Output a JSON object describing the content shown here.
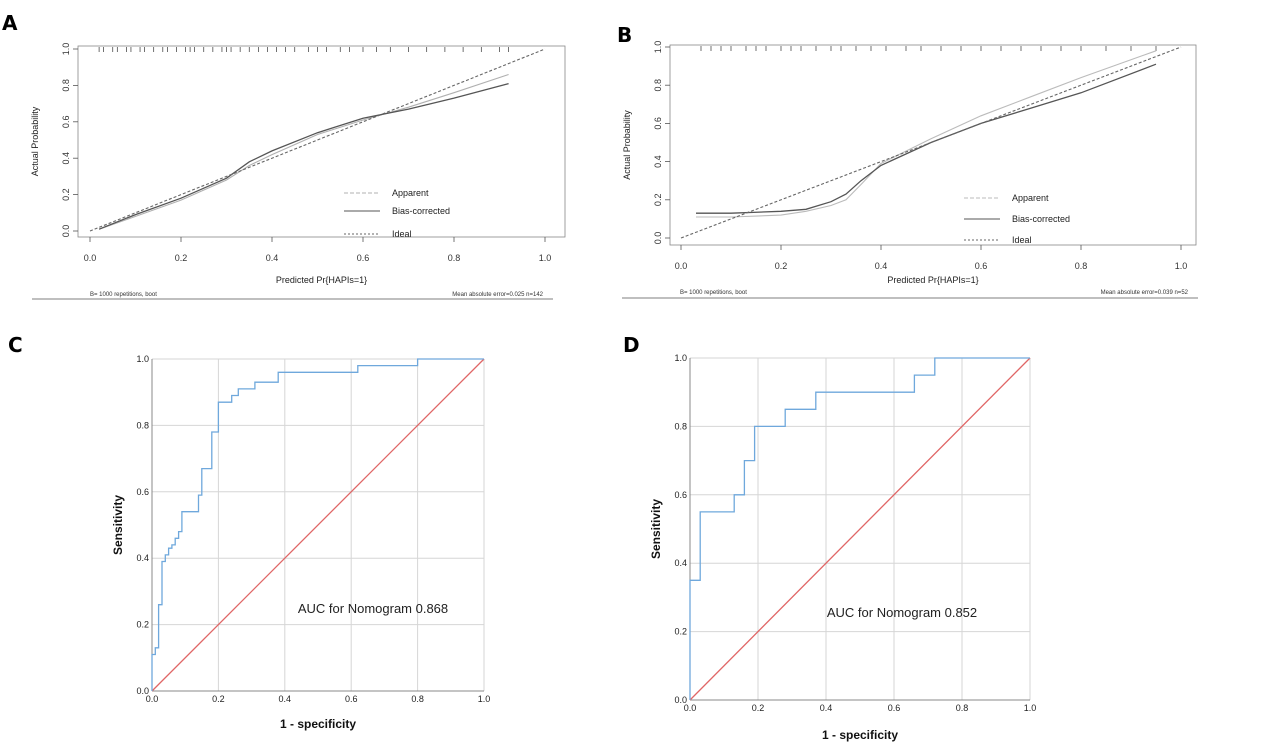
{
  "chart_data": [
    {
      "panel": "A",
      "type": "line",
      "xlabel": "Predicted Pr{HAPIs=1}",
      "ylabel": "Actual Probability",
      "xlim": [
        0,
        1
      ],
      "ylim": [
        0,
        1
      ],
      "xticks": [
        "0.0",
        "0.2",
        "0.4",
        "0.6",
        "0.8",
        "1.0"
      ],
      "yticks": [
        "0.0",
        "0.2",
        "0.4",
        "0.6",
        "0.8",
        "1.0"
      ],
      "legend": {
        "position": "bottom-right",
        "entries": [
          "Apparent",
          "Bias-corrected",
          "Ideal"
        ]
      },
      "footer_left": "B= 1000 repetitions, boot",
      "footer_right": "Mean absolute error=0.025 n=142",
      "series": [
        {
          "name": "Apparent",
          "color": "#b0b0b0",
          "x": [
            0.02,
            0.1,
            0.2,
            0.3,
            0.35,
            0.4,
            0.5,
            0.6,
            0.7,
            0.8,
            0.92
          ],
          "y": [
            0.01,
            0.08,
            0.17,
            0.28,
            0.36,
            0.42,
            0.53,
            0.61,
            0.68,
            0.76,
            0.86
          ]
        },
        {
          "name": "Bias-corrected",
          "color": "#555555",
          "x": [
            0.02,
            0.1,
            0.2,
            0.3,
            0.35,
            0.4,
            0.5,
            0.6,
            0.7,
            0.8,
            0.92
          ],
          "y": [
            0.01,
            0.09,
            0.18,
            0.29,
            0.38,
            0.44,
            0.54,
            0.62,
            0.67,
            0.73,
            0.81
          ]
        },
        {
          "name": "Ideal",
          "color": "#666666",
          "dashed": true,
          "x": [
            0,
            1
          ],
          "y": [
            0,
            1
          ]
        }
      ],
      "rug_x": [
        0.02,
        0.03,
        0.05,
        0.06,
        0.08,
        0.09,
        0.11,
        0.12,
        0.14,
        0.16,
        0.17,
        0.19,
        0.21,
        0.22,
        0.23,
        0.25,
        0.27,
        0.29,
        0.3,
        0.31,
        0.33,
        0.35,
        0.37,
        0.39,
        0.41,
        0.43,
        0.45,
        0.48,
        0.5,
        0.52,
        0.55,
        0.57,
        0.6,
        0.63,
        0.66,
        0.7,
        0.74,
        0.78,
        0.82,
        0.86,
        0.9,
        0.92
      ]
    },
    {
      "panel": "B",
      "type": "line",
      "xlabel": "Predicted Pr{HAPIs=1}",
      "ylabel": "Actual Probability",
      "xlim": [
        0,
        1
      ],
      "ylim": [
        0,
        1
      ],
      "xticks": [
        "0.0",
        "0.2",
        "0.4",
        "0.6",
        "0.8",
        "1.0"
      ],
      "yticks": [
        "0.0",
        "0.2",
        "0.4",
        "0.6",
        "0.8",
        "1.0"
      ],
      "legend": {
        "position": "bottom-right",
        "entries": [
          "Apparent",
          "Bias-corrected",
          "Ideal"
        ]
      },
      "footer_left": "B= 1000 repetitions, boot",
      "footer_right": "Mean absolute error=0.039 n=52",
      "series": [
        {
          "name": "Apparent",
          "color": "#bbbbbb",
          "x": [
            0.03,
            0.1,
            0.2,
            0.25,
            0.3,
            0.33,
            0.36,
            0.4,
            0.5,
            0.6,
            0.7,
            0.8,
            0.95
          ],
          "y": [
            0.11,
            0.11,
            0.12,
            0.14,
            0.17,
            0.2,
            0.28,
            0.39,
            0.52,
            0.64,
            0.74,
            0.84,
            0.98
          ]
        },
        {
          "name": "Bias-corrected",
          "color": "#555555",
          "x": [
            0.03,
            0.1,
            0.2,
            0.25,
            0.3,
            0.33,
            0.36,
            0.4,
            0.5,
            0.6,
            0.7,
            0.8,
            0.95
          ],
          "y": [
            0.13,
            0.13,
            0.14,
            0.15,
            0.19,
            0.23,
            0.3,
            0.38,
            0.5,
            0.6,
            0.68,
            0.76,
            0.91
          ]
        },
        {
          "name": "Ideal",
          "color": "#666666",
          "dashed": true,
          "x": [
            0,
            1
          ],
          "y": [
            0,
            1
          ]
        }
      ],
      "rug_x": [
        0.04,
        0.06,
        0.08,
        0.1,
        0.13,
        0.15,
        0.17,
        0.2,
        0.22,
        0.24,
        0.27,
        0.3,
        0.32,
        0.35,
        0.38,
        0.41,
        0.45,
        0.48,
        0.52,
        0.56,
        0.6,
        0.64,
        0.68,
        0.72,
        0.76,
        0.8,
        0.85,
        0.9,
        0.95
      ]
    },
    {
      "panel": "C",
      "type": "line",
      "xlabel": "1 - specificity",
      "ylabel": "Sensitivity",
      "xlim": [
        0,
        1
      ],
      "ylim": [
        0,
        1
      ],
      "xticks": [
        "0.0",
        "0.2",
        "0.4",
        "0.6",
        "0.8",
        "1.0"
      ],
      "yticks": [
        "0.0",
        "0.2",
        "0.4",
        "0.6",
        "0.8",
        "1.0"
      ],
      "annotation": "AUC for Nomogram 0.868",
      "series": [
        {
          "name": "ROC",
          "color": "#6fa8dc",
          "x": [
            0.0,
            0.0,
            0.01,
            0.01,
            0.02,
            0.02,
            0.03,
            0.03,
            0.04,
            0.04,
            0.05,
            0.05,
            0.06,
            0.06,
            0.07,
            0.07,
            0.08,
            0.08,
            0.09,
            0.09,
            0.11,
            0.11,
            0.14,
            0.14,
            0.15,
            0.15,
            0.18,
            0.18,
            0.2,
            0.2,
            0.24,
            0.24,
            0.26,
            0.26,
            0.31,
            0.31,
            0.38,
            0.38,
            0.46,
            0.46,
            0.62,
            0.62,
            0.77,
            0.77,
            0.8,
            0.8,
            1.0
          ],
          "y": [
            0.0,
            0.11,
            0.11,
            0.13,
            0.13,
            0.26,
            0.26,
            0.39,
            0.39,
            0.41,
            0.41,
            0.43,
            0.43,
            0.44,
            0.44,
            0.46,
            0.46,
            0.48,
            0.48,
            0.54,
            0.54,
            0.54,
            0.54,
            0.59,
            0.59,
            0.67,
            0.67,
            0.78,
            0.78,
            0.87,
            0.87,
            0.89,
            0.89,
            0.91,
            0.91,
            0.93,
            0.93,
            0.96,
            0.96,
            0.96,
            0.96,
            0.98,
            0.98,
            0.98,
            0.98,
            1.0,
            1.0
          ]
        },
        {
          "name": "Reference",
          "color": "#e06666",
          "x": [
            0,
            1
          ],
          "y": [
            0,
            1
          ]
        }
      ]
    },
    {
      "panel": "D",
      "type": "line",
      "xlabel": "1 - specificity",
      "ylabel": "Sensitivity",
      "xlim": [
        0,
        1
      ],
      "ylim": [
        0,
        1
      ],
      "xticks": [
        "0.0",
        "0.2",
        "0.4",
        "0.6",
        "0.8",
        "1.0"
      ],
      "yticks": [
        "0.0",
        "0.2",
        "0.4",
        "0.6",
        "0.8",
        "1.0"
      ],
      "annotation": "AUC for Nomogram 0.852",
      "series": [
        {
          "name": "ROC",
          "color": "#6fa8dc",
          "x": [
            0.0,
            0.0,
            0.03,
            0.03,
            0.13,
            0.13,
            0.16,
            0.16,
            0.19,
            0.19,
            0.28,
            0.28,
            0.37,
            0.37,
            0.66,
            0.66,
            0.72,
            0.72,
            1.0
          ],
          "y": [
            0.0,
            0.35,
            0.35,
            0.55,
            0.55,
            0.6,
            0.6,
            0.7,
            0.7,
            0.8,
            0.8,
            0.85,
            0.85,
            0.9,
            0.9,
            0.95,
            0.95,
            1.0,
            1.0
          ]
        },
        {
          "name": "Reference",
          "color": "#e06666",
          "x": [
            0,
            1
          ],
          "y": [
            0,
            1
          ]
        }
      ]
    }
  ],
  "labels": {
    "A": "A",
    "B": "B",
    "C": "C",
    "D": "D"
  }
}
